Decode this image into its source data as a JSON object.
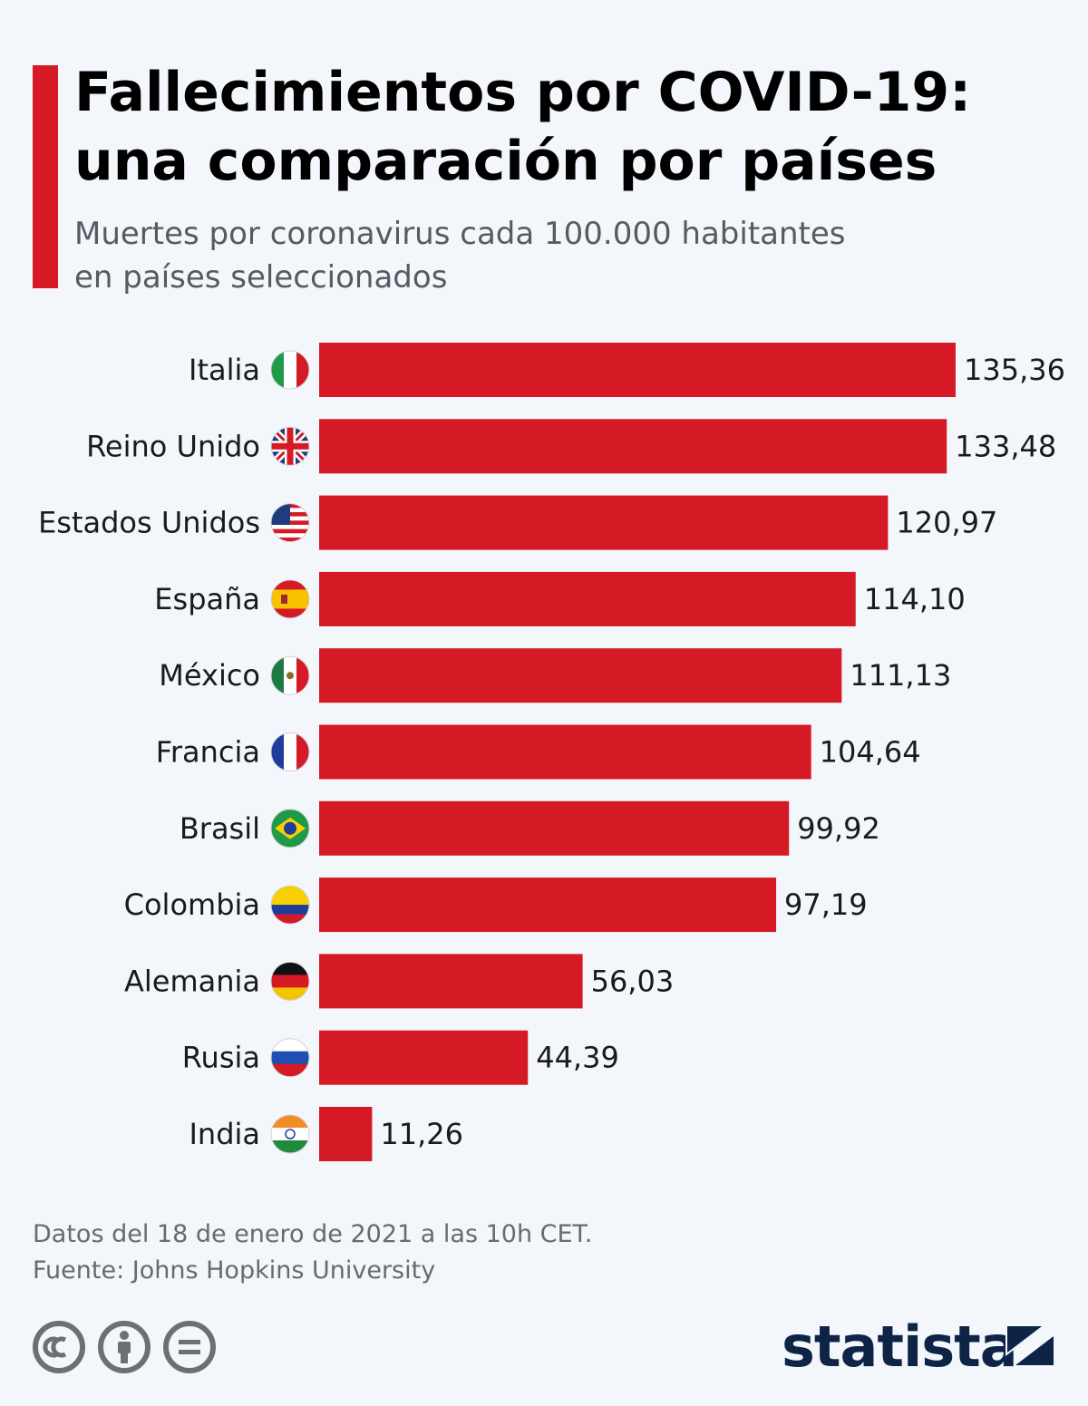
{
  "header": {
    "title_line1": "Fallecimientos por COVID-19:",
    "title_line2": "una comparación por países",
    "subtitle_line1": "Muertes por coronavirus cada 100.000 habitantes",
    "subtitle_line2": "en países seleccionados"
  },
  "colors": {
    "accent": "#d51a25",
    "bar": "#d51a25",
    "background": "#f3f6fa",
    "brand": "#0d2446"
  },
  "chart_data": {
    "type": "bar",
    "orientation": "horizontal",
    "categories": [
      "Italia",
      "Reino Unido",
      "Estados Unidos",
      "España",
      "México",
      "Francia",
      "Brasil",
      "Colombia",
      "Alemania",
      "Rusia",
      "India"
    ],
    "values": [
      135.36,
      133.48,
      120.97,
      114.1,
      111.13,
      104.64,
      99.92,
      97.19,
      56.03,
      44.39,
      11.26
    ],
    "value_labels": [
      "135,36",
      "133,48",
      "120,97",
      "114,10",
      "111,13",
      "104,64",
      "99,92",
      "97,19",
      "56,03",
      "44,39",
      "11,26"
    ],
    "flags": [
      "italy-flag-icon",
      "uk-flag-icon",
      "usa-flag-icon",
      "spain-flag-icon",
      "mexico-flag-icon",
      "france-flag-icon",
      "brazil-flag-icon",
      "colombia-flag-icon",
      "germany-flag-icon",
      "russia-flag-icon",
      "india-flag-icon"
    ],
    "xlim": [
      0,
      135.36
    ],
    "grid": false,
    "legend": "none"
  },
  "footer": {
    "note": "Datos del 18 de enero de 2021 a las 10h CET.",
    "source": "Fuente: Johns Hopkins University"
  },
  "license_icons": [
    "creative-commons-icon",
    "attribution-icon",
    "no-derivatives-icon"
  ],
  "brand": {
    "name": "statista",
    "mark_icon": "statista-logo-icon"
  }
}
